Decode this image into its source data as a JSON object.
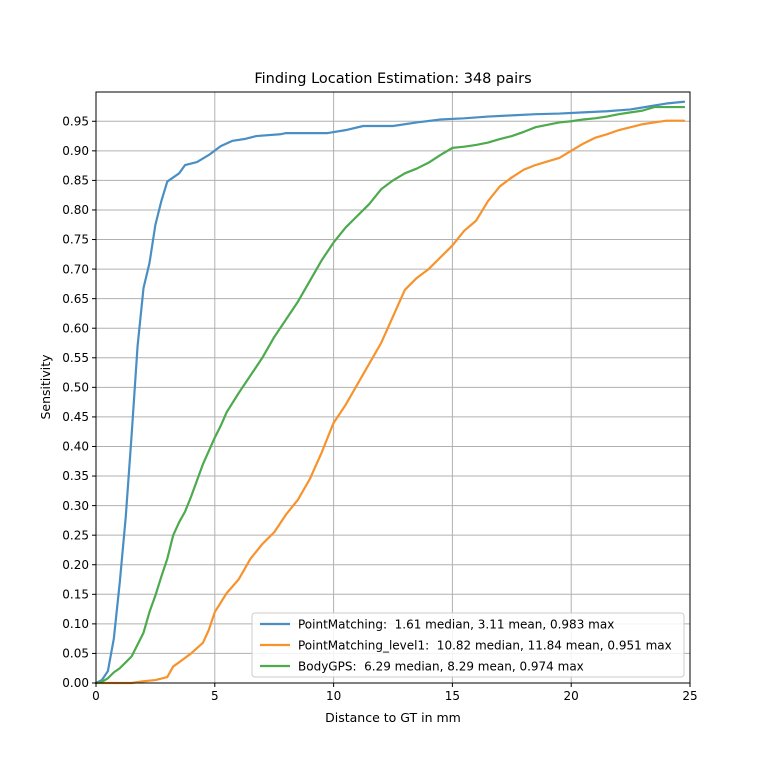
{
  "chart_data": {
    "type": "line",
    "title": "Finding Location Estimation: 348 pairs",
    "xlabel": "Distance to GT in mm",
    "ylabel": "Sensitivity",
    "xlim": [
      0,
      25
    ],
    "ylim": [
      0,
      1.0
    ],
    "xticks": [
      "0",
      "5",
      "10",
      "15",
      "20",
      "25"
    ],
    "xtick_values": [
      0,
      5,
      10,
      15,
      20,
      25
    ],
    "yticks": [
      "0.00",
      "0.05",
      "0.10",
      "0.15",
      "0.20",
      "0.25",
      "0.30",
      "0.35",
      "0.40",
      "0.45",
      "0.50",
      "0.55",
      "0.60",
      "0.65",
      "0.70",
      "0.75",
      "0.80",
      "0.85",
      "0.90",
      "0.95"
    ],
    "ytick_values": [
      0,
      0.05,
      0.1,
      0.15,
      0.2,
      0.25,
      0.3,
      0.35,
      0.4,
      0.45,
      0.5,
      0.55,
      0.6,
      0.65,
      0.7,
      0.75,
      0.8,
      0.85,
      0.9,
      0.95
    ],
    "grid": true,
    "legend_position": "lower-right",
    "series": [
      {
        "name": "PointMatching:  1.61 median, 3.11 mean, 0.983 max",
        "color": "#4a8fc4",
        "x": [
          0,
          0.25,
          0.5,
          0.75,
          1.0,
          1.25,
          1.5,
          1.75,
          2.0,
          2.25,
          2.5,
          2.75,
          3.0,
          3.5,
          3.75,
          4.25,
          4.75,
          5.25,
          5.75,
          6.25,
          6.75,
          7.75,
          8.0,
          9.75,
          10.5,
          11.25,
          12.5,
          13.5,
          14.5,
          15.5,
          16.5,
          17.5,
          18.5,
          19.5,
          20.5,
          21.5,
          22.5,
          23.25,
          24.0,
          24.75
        ],
        "y": [
          0,
          0.005,
          0.02,
          0.075,
          0.17,
          0.28,
          0.42,
          0.57,
          0.668,
          0.71,
          0.775,
          0.815,
          0.848,
          0.862,
          0.876,
          0.881,
          0.893,
          0.908,
          0.917,
          0.92,
          0.925,
          0.928,
          0.93,
          0.93,
          0.935,
          0.942,
          0.942,
          0.948,
          0.953,
          0.955,
          0.958,
          0.96,
          0.962,
          0.963,
          0.965,
          0.967,
          0.97,
          0.975,
          0.98,
          0.983
        ]
      },
      {
        "name": "PointMatching_level1:  10.82 median, 11.84 mean, 0.951 max",
        "color": "#f7932c",
        "x": [
          0,
          1.5,
          2.0,
          2.5,
          3.0,
          3.25,
          3.5,
          4.0,
          4.5,
          4.75,
          5.0,
          5.5,
          6.0,
          6.5,
          7.0,
          7.5,
          8.0,
          8.5,
          9.0,
          9.5,
          10.0,
          10.5,
          11.0,
          11.5,
          12.0,
          12.5,
          13.0,
          13.5,
          14.0,
          14.5,
          15.0,
          15.5,
          16.0,
          16.5,
          17.0,
          17.5,
          18.0,
          18.5,
          19.0,
          19.5,
          20.0,
          20.5,
          21.0,
          21.5,
          22.0,
          22.5,
          23.0,
          23.5,
          24.0,
          24.75
        ],
        "y": [
          0,
          0,
          0.003,
          0.005,
          0.01,
          0.028,
          0.035,
          0.05,
          0.068,
          0.09,
          0.12,
          0.152,
          0.175,
          0.21,
          0.235,
          0.255,
          0.285,
          0.31,
          0.345,
          0.39,
          0.44,
          0.47,
          0.505,
          0.54,
          0.575,
          0.62,
          0.665,
          0.685,
          0.7,
          0.72,
          0.74,
          0.765,
          0.782,
          0.815,
          0.84,
          0.855,
          0.868,
          0.876,
          0.882,
          0.888,
          0.9,
          0.912,
          0.922,
          0.928,
          0.935,
          0.94,
          0.945,
          0.948,
          0.951,
          0.951
        ]
      },
      {
        "name": "BodyGPS:  6.29 median, 8.29 mean, 0.974 max",
        "color": "#4daa4d",
        "x": [
          0,
          0.25,
          0.5,
          0.75,
          1.0,
          1.5,
          2.0,
          2.25,
          2.5,
          2.75,
          3.0,
          3.25,
          3.5,
          3.75,
          4.0,
          4.5,
          5.0,
          5.25,
          5.5,
          6.0,
          6.5,
          7.0,
          7.5,
          8.0,
          8.5,
          9.0,
          9.5,
          10.0,
          10.5,
          11.0,
          11.5,
          12.0,
          12.5,
          13.0,
          13.5,
          14.0,
          14.5,
          15.0,
          15.5,
          16.0,
          16.5,
          17.0,
          17.5,
          18.0,
          18.5,
          19.0,
          19.5,
          20.0,
          20.5,
          21.0,
          21.5,
          22.0,
          22.5,
          23.0,
          23.5,
          24.75
        ],
        "y": [
          0,
          0.002,
          0.008,
          0.018,
          0.025,
          0.045,
          0.085,
          0.12,
          0.148,
          0.18,
          0.21,
          0.25,
          0.272,
          0.29,
          0.315,
          0.37,
          0.415,
          0.435,
          0.458,
          0.49,
          0.52,
          0.55,
          0.585,
          0.615,
          0.645,
          0.68,
          0.715,
          0.745,
          0.77,
          0.79,
          0.81,
          0.835,
          0.85,
          0.862,
          0.87,
          0.88,
          0.893,
          0.905,
          0.907,
          0.91,
          0.914,
          0.92,
          0.925,
          0.932,
          0.94,
          0.944,
          0.948,
          0.95,
          0.953,
          0.955,
          0.958,
          0.962,
          0.965,
          0.968,
          0.974,
          0.974
        ]
      }
    ]
  }
}
